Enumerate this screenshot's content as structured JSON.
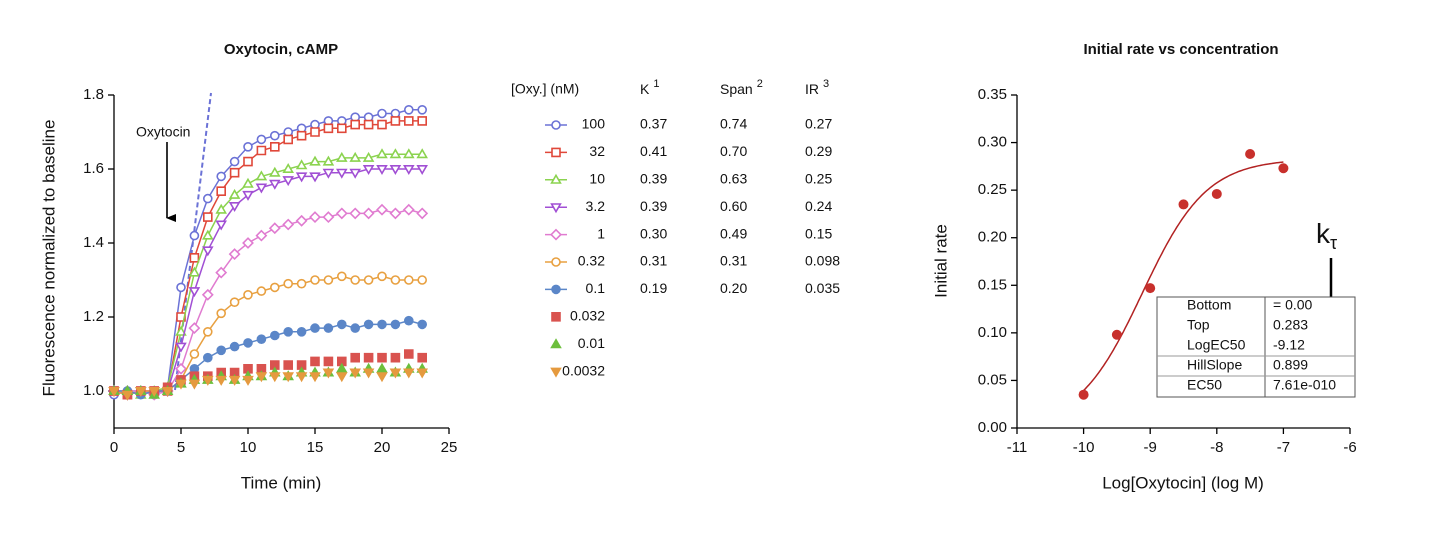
{
  "chart_data": [
    {
      "type": "line",
      "title": "Oxytocin, cAMP",
      "x_label": "Time (min)",
      "y_label": "Fluorescence normalized to baseline",
      "annotation": "Oxytocin",
      "xlim": [
        0,
        25
      ],
      "xticks": [
        0,
        5,
        10,
        15,
        20,
        25
      ],
      "ylim": [
        0.9,
        1.8
      ],
      "yticks": [
        {
          "value": 1.0,
          "label": "1.0"
        },
        1.2,
        1.4,
        1.6,
        1.8
      ],
      "x": [
        0,
        1,
        2,
        3,
        4,
        5,
        6,
        7,
        8,
        9,
        10,
        11,
        12,
        13,
        14,
        15,
        16,
        17,
        18,
        19,
        20,
        21,
        22,
        23
      ],
      "legend_title": "[Oxy.] (nM)",
      "series": [
        {
          "name": "100",
          "color": "#6b72d6",
          "marker": "circle",
          "filled": false,
          "fit_line": true,
          "values": [
            0.99,
            1.0,
            1.0,
            0.99,
            1.01,
            1.28,
            1.42,
            1.52,
            1.58,
            1.62,
            1.66,
            1.68,
            1.69,
            1.7,
            1.71,
            1.72,
            1.73,
            1.73,
            1.74,
            1.74,
            1.75,
            1.75,
            1.76,
            1.76
          ]
        },
        {
          "name": "32",
          "color": "#e0483a",
          "marker": "square",
          "filled": false,
          "fit_line": true,
          "values": [
            1.0,
            0.99,
            1.0,
            1.0,
            1.0,
            1.2,
            1.36,
            1.47,
            1.54,
            1.59,
            1.62,
            1.65,
            1.66,
            1.68,
            1.69,
            1.7,
            1.71,
            1.71,
            1.72,
            1.72,
            1.72,
            1.73,
            1.73,
            1.73
          ]
        },
        {
          "name": "10",
          "color": "#8bd34f",
          "marker": "triangle-up",
          "filled": false,
          "fit_line": true,
          "values": [
            1.0,
            1.0,
            0.99,
            1.0,
            1.01,
            1.16,
            1.32,
            1.42,
            1.49,
            1.53,
            1.56,
            1.58,
            1.59,
            1.6,
            1.61,
            1.62,
            1.62,
            1.63,
            1.63,
            1.63,
            1.64,
            1.64,
            1.64,
            1.64
          ]
        },
        {
          "name": "3.2",
          "color": "#a14fd4",
          "marker": "triangle-down",
          "filled": false,
          "fit_line": true,
          "values": [
            1.0,
            0.99,
            1.0,
            1.0,
            1.0,
            1.12,
            1.27,
            1.38,
            1.45,
            1.5,
            1.53,
            1.55,
            1.56,
            1.57,
            1.58,
            1.58,
            1.59,
            1.59,
            1.59,
            1.6,
            1.6,
            1.6,
            1.6,
            1.6
          ]
        },
        {
          "name": "1",
          "color": "#e07bd0",
          "marker": "diamond",
          "filled": false,
          "fit_line": true,
          "values": [
            1.0,
            1.0,
            1.0,
            0.99,
            1.0,
            1.06,
            1.17,
            1.26,
            1.32,
            1.37,
            1.4,
            1.42,
            1.44,
            1.45,
            1.46,
            1.47,
            1.47,
            1.48,
            1.48,
            1.48,
            1.49,
            1.48,
            1.49,
            1.48
          ]
        },
        {
          "name": "0.32",
          "color": "#e8a040",
          "marker": "circle",
          "filled": false,
          "fit_line": true,
          "values": [
            1.0,
            0.99,
            1.0,
            1.0,
            1.0,
            1.03,
            1.1,
            1.16,
            1.21,
            1.24,
            1.26,
            1.27,
            1.28,
            1.29,
            1.29,
            1.3,
            1.3,
            1.31,
            1.3,
            1.3,
            1.31,
            1.3,
            1.3,
            1.3
          ]
        },
        {
          "name": "0.1",
          "color": "#5b86c8",
          "marker": "circle",
          "filled": true,
          "fit_line": true,
          "values": [
            1.0,
            1.0,
            0.99,
            1.0,
            1.0,
            1.03,
            1.06,
            1.09,
            1.11,
            1.12,
            1.13,
            1.14,
            1.15,
            1.16,
            1.16,
            1.17,
            1.17,
            1.18,
            1.17,
            1.18,
            1.18,
            1.18,
            1.19,
            1.18
          ]
        },
        {
          "name": "0.032",
          "color": "#d9534f",
          "marker": "square",
          "filled": true,
          "fit_line": false,
          "values": [
            1.0,
            0.99,
            1.0,
            1.0,
            1.01,
            1.03,
            1.04,
            1.04,
            1.05,
            1.05,
            1.06,
            1.06,
            1.07,
            1.07,
            1.07,
            1.08,
            1.08,
            1.08,
            1.09,
            1.09,
            1.09,
            1.09,
            1.1,
            1.09
          ]
        },
        {
          "name": "0.01",
          "color": "#6cbf3c",
          "marker": "triangle-up",
          "filled": true,
          "fit_line": false,
          "values": [
            1.0,
            1.0,
            1.0,
            0.99,
            1.0,
            1.02,
            1.03,
            1.03,
            1.04,
            1.03,
            1.04,
            1.04,
            1.05,
            1.04,
            1.05,
            1.05,
            1.05,
            1.06,
            1.05,
            1.06,
            1.06,
            1.05,
            1.06,
            1.06
          ]
        },
        {
          "name": "0.0032",
          "color": "#e59a3f",
          "marker": "triangle-down",
          "filled": true,
          "fit_line": false,
          "values": [
            1.0,
            0.99,
            1.0,
            1.0,
            1.0,
            1.02,
            1.02,
            1.03,
            1.03,
            1.03,
            1.03,
            1.04,
            1.04,
            1.04,
            1.04,
            1.04,
            1.05,
            1.04,
            1.05,
            1.05,
            1.04,
            1.05,
            1.05,
            1.05
          ]
        }
      ],
      "table": {
        "header": [
          {
            "text": "K",
            "sup": "1"
          },
          {
            "text": "Span",
            "sup": "2"
          },
          {
            "text": "IR",
            "sup": "3"
          }
        ],
        "rows": [
          [
            "0.37",
            "0.74",
            "0.27"
          ],
          [
            "0.41",
            "0.70",
            "0.29"
          ],
          [
            "0.39",
            "0.63",
            "0.25"
          ],
          [
            "0.39",
            "0.60",
            "0.24"
          ],
          [
            "0.30",
            "0.49",
            "0.15"
          ],
          [
            "0.31",
            "0.31",
            "0.098"
          ],
          [
            "0.19",
            "0.20",
            "0.035"
          ]
        ]
      }
    },
    {
      "type": "scatter",
      "title": "Initial rate vs concentration",
      "x_label": "Log[Oxytocin] (log M)",
      "y_label": "Initial rate",
      "annotation": {
        "text": "k",
        "sub": "τ"
      },
      "xlim": [
        -11,
        -6
      ],
      "xticks": [
        -11,
        -10,
        -9,
        -8,
        -7,
        -6
      ],
      "ylim": [
        0,
        0.35
      ],
      "yticks": [
        {
          "value": 0,
          "label": "0.00"
        },
        0.05,
        {
          "value": 0.1,
          "label": "0.10"
        },
        0.15,
        {
          "value": 0.2,
          "label": "0.20"
        },
        0.25,
        {
          "value": 0.3,
          "label": "0.30"
        },
        0.35
      ],
      "color": "#c8302c",
      "fit_color": "#b22222",
      "x": [
        -10,
        -9.5,
        -9,
        -8.5,
        -8,
        -7.5,
        -7
      ],
      "values": [
        0.035,
        0.098,
        0.147,
        0.235,
        0.246,
        0.288,
        0.273
      ],
      "fit_table": [
        {
          "name": "Bottom",
          "value": 0,
          "label": "= 0.00"
        },
        {
          "name": "Top",
          "value": 0.283,
          "label": "0.283"
        },
        {
          "name": "LogEC50",
          "value": -9.12,
          "label": "-9.12"
        },
        {
          "name": "HillSlope",
          "value": 0.899,
          "label": "0.899"
        },
        {
          "name": "EC50",
          "value": 7.61e-10,
          "label": "7.61e-010"
        }
      ]
    }
  ]
}
